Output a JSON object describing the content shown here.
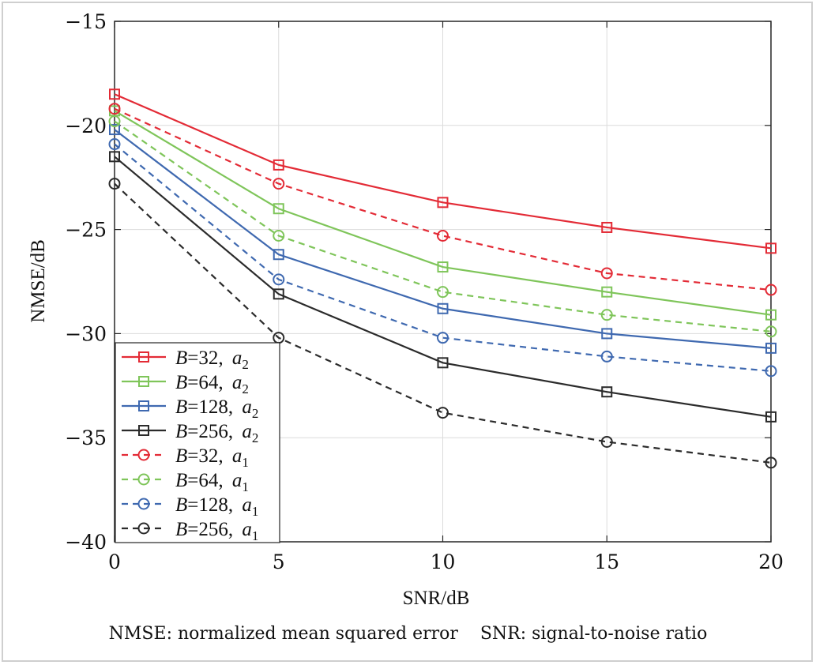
{
  "chart_data": {
    "type": "line",
    "x": [
      0,
      5,
      10,
      15,
      20
    ],
    "xlabel": "SNR/dB",
    "ylabel": "NMSE/dB",
    "xlim": [
      0,
      20
    ],
    "ylim": [
      -40,
      -15
    ],
    "xticks": [
      "0",
      "5",
      "10",
      "15",
      "20"
    ],
    "yticks": [
      "−15",
      "−20",
      "−25",
      "−30",
      "−35",
      "−40"
    ],
    "grid": true,
    "legend_position": "bottom-left",
    "series": [
      {
        "name": "B=32, a2",
        "legend": {
          "var": "B",
          "num": "=32",
          "sym": "a",
          "sub": "2"
        },
        "color": "#e32b36",
        "dash": false,
        "marker": "square",
        "values": [
          -18.5,
          -21.9,
          -23.7,
          -24.9,
          -25.9
        ]
      },
      {
        "name": "B=64, a2",
        "legend": {
          "var": "B",
          "num": "=64",
          "sym": "a",
          "sub": "2"
        },
        "color": "#7fc55a",
        "dash": false,
        "marker": "square",
        "values": [
          -19.3,
          -24.0,
          -26.8,
          -28.0,
          -29.1
        ]
      },
      {
        "name": "B=128, a2",
        "legend": {
          "var": "B",
          "num": "=128",
          "sym": "a",
          "sub": "2"
        },
        "color": "#3f69b0",
        "dash": false,
        "marker": "square",
        "values": [
          -20.2,
          -26.2,
          -28.8,
          -30.0,
          -30.7
        ]
      },
      {
        "name": "B=256, a2",
        "legend": {
          "var": "B",
          "num": "=256",
          "sym": "a",
          "sub": "2"
        },
        "color": "#2b2b2b",
        "dash": false,
        "marker": "square",
        "values": [
          -21.5,
          -28.1,
          -31.4,
          -32.8,
          -34.0
        ]
      },
      {
        "name": "B=32, a1",
        "legend": {
          "var": "B",
          "num": "=32",
          "sym": "a",
          "sub": "1"
        },
        "color": "#e32b36",
        "dash": true,
        "marker": "circle",
        "values": [
          -19.2,
          -22.8,
          -25.3,
          -27.1,
          -27.9
        ]
      },
      {
        "name": "B=64, a1",
        "legend": {
          "var": "B",
          "num": "=64",
          "sym": "a",
          "sub": "1"
        },
        "color": "#7fc55a",
        "dash": true,
        "marker": "circle",
        "values": [
          -19.8,
          -25.3,
          -28.0,
          -29.1,
          -29.9
        ]
      },
      {
        "name": "B=128, a1",
        "legend": {
          "var": "B",
          "num": "=128",
          "sym": "a",
          "sub": "1"
        },
        "color": "#3f69b0",
        "dash": true,
        "marker": "circle",
        "values": [
          -20.9,
          -27.4,
          -30.2,
          -31.1,
          -31.8
        ]
      },
      {
        "name": "B=256, a1",
        "legend": {
          "var": "B",
          "num": "=256",
          "sym": "a",
          "sub": "1"
        },
        "color": "#2b2b2b",
        "dash": true,
        "marker": "circle",
        "values": [
          -22.8,
          -30.2,
          -33.8,
          -35.2,
          -36.2
        ]
      }
    ]
  },
  "caption": "NMSE: normalized mean squared error    SNR: signal-to-noise ratio"
}
